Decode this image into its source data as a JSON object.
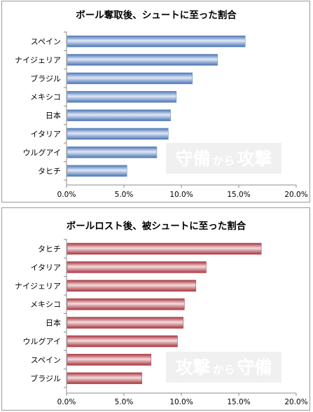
{
  "chart_data": [
    {
      "type": "bar",
      "orientation": "horizontal",
      "title": "ボール奪取後、シュートに至った割合",
      "categories": [
        "スペイン",
        "ナイジェリア",
        "ブラジル",
        "メキシコ",
        "日本",
        "イタリア",
        "ウルグアイ",
        "タヒチ"
      ],
      "values": [
        0.155,
        0.131,
        0.109,
        0.095,
        0.09,
        0.088,
        0.078,
        0.052
      ],
      "xlim": [
        0,
        0.2
      ],
      "xticks": [
        "0.0%",
        "5.0%",
        "10.0%",
        "15.0%",
        "20.0%"
      ],
      "grid": false,
      "bar_color": "#6f95cc",
      "watermark": {
        "left": "守備",
        "middle": "から",
        "right": "攻撃"
      }
    },
    {
      "type": "bar",
      "orientation": "horizontal",
      "title": "ボールロスト後、被シュートに至った割合",
      "categories": [
        "タヒチ",
        "イタリア",
        "ナイジェリア",
        "メキシコ",
        "日本",
        "ウルグアイ",
        "スペイン",
        "ブラジル"
      ],
      "values": [
        0.169,
        0.121,
        0.112,
        0.102,
        0.101,
        0.096,
        0.073,
        0.065
      ],
      "xlim": [
        0,
        0.2
      ],
      "xticks": [
        "0.0%",
        "5.0%",
        "10.0%",
        "15.0%",
        "20.0%"
      ],
      "grid": false,
      "bar_color": "#b94a52",
      "watermark": {
        "left": "攻撃",
        "middle": "から",
        "right": "守備"
      }
    }
  ]
}
